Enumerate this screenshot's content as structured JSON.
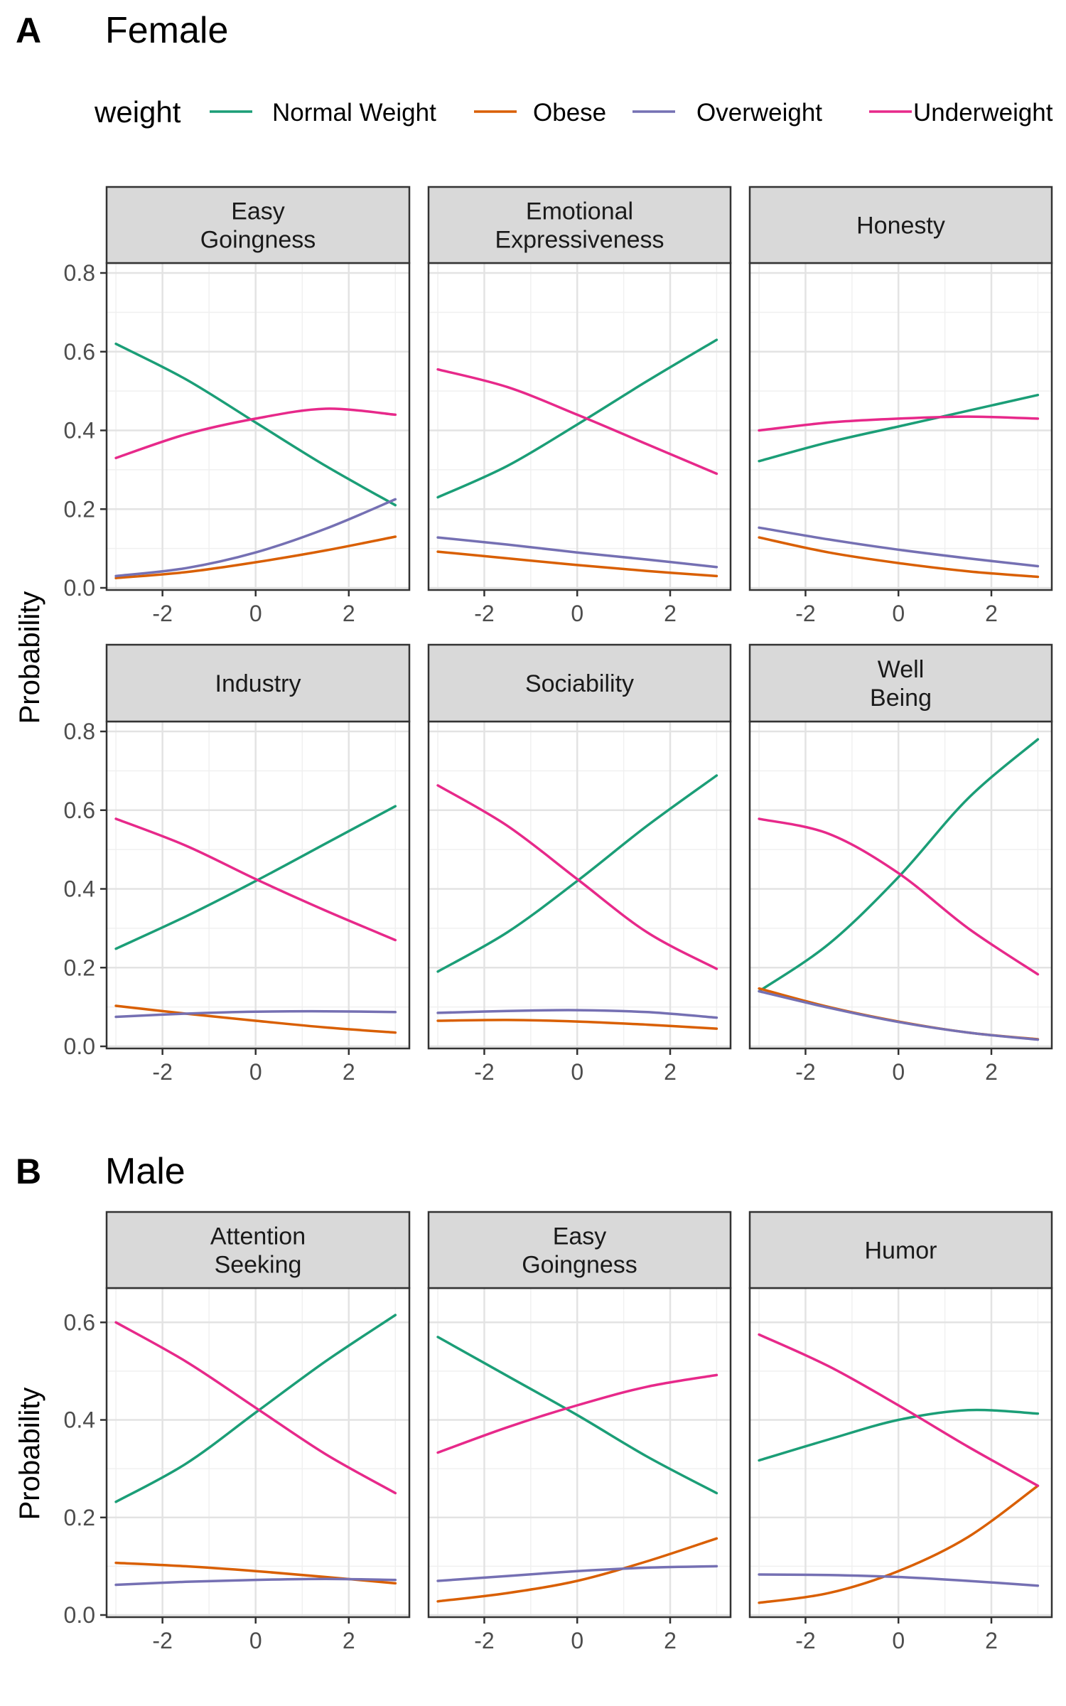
{
  "figure": {
    "legend": {
      "title": "weight",
      "entries": [
        {
          "label": "Normal Weight",
          "color": "#1b9e77"
        },
        {
          "label": "Obese",
          "color": "#d95f02"
        },
        {
          "label": "Overweight",
          "color": "#7570b3"
        },
        {
          "label": "Underweight",
          "color": "#e7298a"
        }
      ]
    },
    "y_axis_label": "Probability",
    "grid": true
  },
  "chart_data": [
    {
      "panel_tag": "A",
      "panel_title": "Female",
      "type": "line",
      "xlim": [
        -3.2,
        3.3
      ],
      "x_ticks": [
        -2,
        0,
        2
      ],
      "ylim": [
        0,
        0.8
      ],
      "y_ticks": [
        0.0,
        0.2,
        0.4,
        0.6,
        0.8
      ],
      "ylabel": "Probability",
      "facets": [
        {
          "label": [
            "Easy",
            "Goingness"
          ],
          "x": [
            -3,
            -1.5,
            0,
            1.5,
            3
          ],
          "series": [
            {
              "name": "Normal Weight",
              "values": [
                0.62,
                0.53,
                0.42,
                0.31,
                0.21
              ]
            },
            {
              "name": "Obese",
              "values": [
                0.025,
                0.04,
                0.065,
                0.095,
                0.13
              ]
            },
            {
              "name": "Overweight",
              "values": [
                0.03,
                0.05,
                0.09,
                0.15,
                0.225
              ]
            },
            {
              "name": "Underweight",
              "values": [
                0.33,
                0.39,
                0.43,
                0.455,
                0.44
              ]
            }
          ]
        },
        {
          "label": [
            "Emotional",
            "Expressiveness"
          ],
          "x": [
            -3,
            -1.5,
            0,
            1.5,
            3
          ],
          "series": [
            {
              "name": "Normal Weight",
              "values": [
                0.23,
                0.31,
                0.415,
                0.525,
                0.63
              ]
            },
            {
              "name": "Obese",
              "values": [
                0.092,
                0.075,
                0.058,
                0.043,
                0.03
              ]
            },
            {
              "name": "Overweight",
              "values": [
                0.128,
                0.11,
                0.09,
                0.072,
                0.053
              ]
            },
            {
              "name": "Underweight",
              "values": [
                0.555,
                0.51,
                0.44,
                0.365,
                0.29
              ]
            }
          ]
        },
        {
          "label": [
            "Honesty"
          ],
          "x": [
            -3,
            -1.5,
            0,
            1.5,
            3
          ],
          "series": [
            {
              "name": "Normal Weight",
              "values": [
                0.322,
                0.37,
                0.41,
                0.45,
                0.49
              ]
            },
            {
              "name": "Obese",
              "values": [
                0.128,
                0.09,
                0.063,
                0.042,
                0.028
              ]
            },
            {
              "name": "Overweight",
              "values": [
                0.153,
                0.123,
                0.097,
                0.075,
                0.055
              ]
            },
            {
              "name": "Underweight",
              "values": [
                0.4,
                0.42,
                0.43,
                0.435,
                0.43
              ]
            }
          ]
        },
        {
          "label": [
            "Industry"
          ],
          "x": [
            -3,
            -1.5,
            0,
            1.5,
            3
          ],
          "series": [
            {
              "name": "Normal Weight",
              "values": [
                0.248,
                0.33,
                0.42,
                0.515,
                0.61
              ]
            },
            {
              "name": "Obese",
              "values": [
                0.103,
                0.083,
                0.065,
                0.048,
                0.035
              ]
            },
            {
              "name": "Overweight",
              "values": [
                0.075,
                0.083,
                0.088,
                0.089,
                0.087
              ]
            },
            {
              "name": "Underweight",
              "values": [
                0.578,
                0.51,
                0.425,
                0.345,
                0.27
              ]
            }
          ]
        },
        {
          "label": [
            "Sociability"
          ],
          "x": [
            -3,
            -1.5,
            0,
            1.5,
            3
          ],
          "series": [
            {
              "name": "Normal Weight",
              "values": [
                0.19,
                0.29,
                0.42,
                0.56,
                0.688
              ]
            },
            {
              "name": "Obese",
              "values": [
                0.065,
                0.067,
                0.063,
                0.055,
                0.045
              ]
            },
            {
              "name": "Overweight",
              "values": [
                0.085,
                0.09,
                0.092,
                0.087,
                0.073
              ]
            },
            {
              "name": "Underweight",
              "values": [
                0.663,
                0.56,
                0.425,
                0.29,
                0.197
              ]
            }
          ]
        },
        {
          "label": [
            "Well",
            "Being"
          ],
          "x": [
            -3,
            -1.5,
            0,
            1.5,
            3
          ],
          "series": [
            {
              "name": "Normal Weight",
              "values": [
                0.14,
                0.26,
                0.43,
                0.63,
                0.78
              ]
            },
            {
              "name": "Obese",
              "values": [
                0.147,
                0.1,
                0.063,
                0.035,
                0.018
              ]
            },
            {
              "name": "Overweight",
              "values": [
                0.14,
                0.098,
                0.062,
                0.035,
                0.017
              ]
            },
            {
              "name": "Underweight",
              "values": [
                0.578,
                0.54,
                0.44,
                0.3,
                0.183
              ]
            }
          ]
        }
      ]
    },
    {
      "panel_tag": "B",
      "panel_title": "Male",
      "type": "line",
      "xlim": [
        -3.2,
        3.3
      ],
      "x_ticks": [
        -2,
        0,
        2
      ],
      "ylim": [
        0,
        0.65
      ],
      "y_ticks": [
        0.0,
        0.2,
        0.4,
        0.6
      ],
      "ylabel": "Probability",
      "facets": [
        {
          "label": [
            "Attention",
            "Seeking"
          ],
          "x": [
            -3,
            -1.5,
            0,
            1.5,
            3
          ],
          "series": [
            {
              "name": "Normal Weight",
              "values": [
                0.232,
                0.31,
                0.415,
                0.52,
                0.615
              ]
            },
            {
              "name": "Obese",
              "values": [
                0.107,
                0.1,
                0.09,
                0.078,
                0.065
              ]
            },
            {
              "name": "Overweight",
              "values": [
                0.062,
                0.068,
                0.072,
                0.074,
                0.072
              ]
            },
            {
              "name": "Underweight",
              "values": [
                0.6,
                0.52,
                0.425,
                0.33,
                0.25
              ]
            }
          ]
        },
        {
          "label": [
            "Easy",
            "Goingness"
          ],
          "x": [
            -3,
            -1.5,
            0,
            1.5,
            3
          ],
          "series": [
            {
              "name": "Normal Weight",
              "values": [
                0.57,
                0.49,
                0.41,
                0.325,
                0.25
              ]
            },
            {
              "name": "Obese",
              "values": [
                0.028,
                0.045,
                0.07,
                0.11,
                0.157
              ]
            },
            {
              "name": "Overweight",
              "values": [
                0.07,
                0.08,
                0.09,
                0.097,
                0.1
              ]
            },
            {
              "name": "Underweight",
              "values": [
                0.333,
                0.385,
                0.43,
                0.468,
                0.492
              ]
            }
          ]
        },
        {
          "label": [
            "Humor"
          ],
          "x": [
            -3,
            -1.5,
            0,
            1.5,
            3
          ],
          "series": [
            {
              "name": "Normal Weight",
              "values": [
                0.317,
                0.36,
                0.4,
                0.42,
                0.413
              ]
            },
            {
              "name": "Obese",
              "values": [
                0.025,
                0.045,
                0.09,
                0.16,
                0.265
              ]
            },
            {
              "name": "Overweight",
              "values": [
                0.083,
                0.082,
                0.078,
                0.07,
                0.06
              ]
            },
            {
              "name": "Underweight",
              "values": [
                0.575,
                0.51,
                0.43,
                0.345,
                0.265
              ]
            }
          ]
        }
      ]
    }
  ]
}
